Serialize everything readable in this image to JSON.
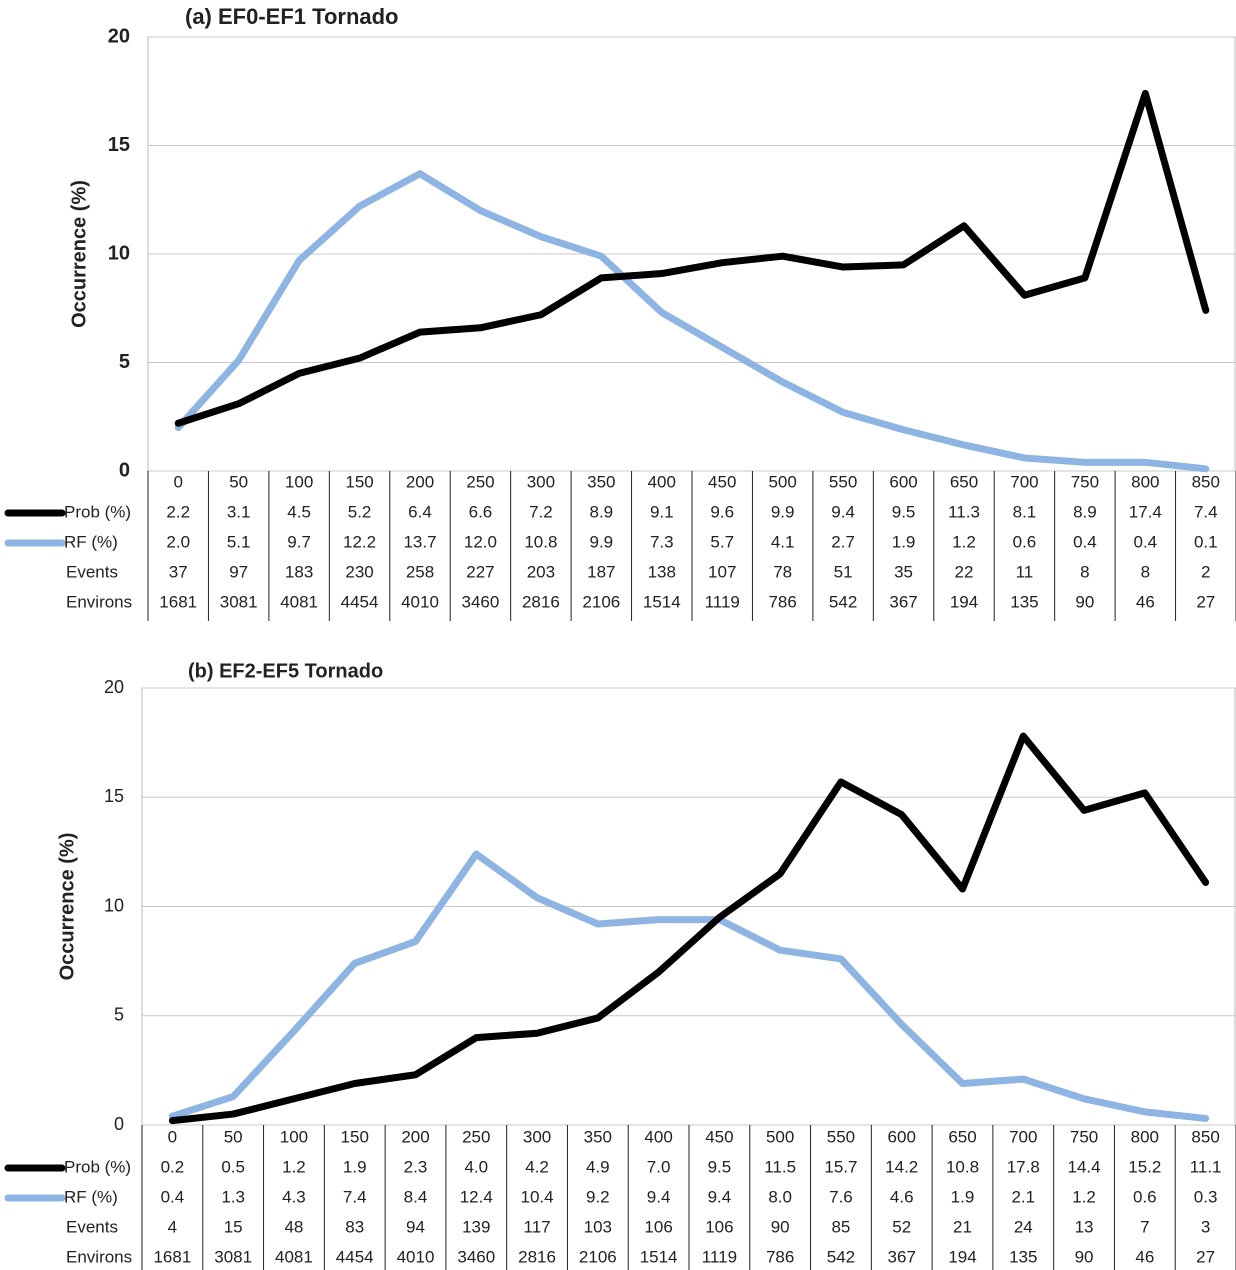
{
  "chart_data": [
    {
      "type": "line",
      "title": "(a) EF0-EF1 Tornado",
      "y_label": "Occurrence (%)",
      "categories": [
        0,
        50,
        100,
        150,
        200,
        250,
        300,
        350,
        400,
        450,
        500,
        550,
        600,
        650,
        700,
        750,
        800,
        850
      ],
      "ylim": [
        0,
        20
      ],
      "yticks": [
        0,
        5,
        10,
        15,
        20
      ],
      "grid": true,
      "series": [
        {
          "name": "Prob (%)",
          "color": "#000000",
          "values": [
            2.2,
            3.1,
            4.5,
            5.2,
            6.4,
            6.6,
            7.2,
            8.9,
            9.1,
            9.6,
            9.9,
            9.4,
            9.5,
            11.3,
            8.1,
            8.9,
            17.4,
            7.4
          ],
          "value_labels": [
            "2.2",
            "3.1",
            "4.5",
            "5.2",
            "6.4",
            "6.6",
            "7.2",
            "8.9",
            "9.1",
            "9.6",
            "9.9",
            "9.4",
            "9.5",
            "11.3",
            "8.1",
            "8.9",
            "17.4",
            "7.4"
          ]
        },
        {
          "name": "RF (%)",
          "color": "#8eb4e3",
          "values": [
            2.0,
            5.1,
            9.7,
            12.2,
            13.7,
            12.0,
            10.8,
            9.9,
            7.3,
            5.7,
            4.1,
            2.7,
            1.9,
            1.2,
            0.6,
            0.4,
            0.4,
            0.1
          ],
          "value_labels": [
            "2.0",
            "5.1",
            "9.7",
            "12.2",
            "13.7",
            "12.0",
            "10.8",
            "9.9",
            "7.3",
            "5.7",
            "4.1",
            "2.7",
            "1.9",
            "1.2",
            "0.6",
            "0.4",
            "0.4",
            "0.1"
          ]
        }
      ],
      "table_rows": [
        {
          "name": "Events",
          "values": [
            37,
            97,
            183,
            230,
            258,
            227,
            203,
            187,
            138,
            107,
            78,
            51,
            35,
            22,
            11,
            8,
            8,
            2
          ]
        },
        {
          "name": "Environs",
          "values": [
            1681,
            3081,
            4081,
            4454,
            4010,
            3460,
            2816,
            2106,
            1514,
            1119,
            786,
            542,
            367,
            194,
            135,
            90,
            46,
            27
          ]
        }
      ]
    },
    {
      "type": "line",
      "title": "(b) EF2-EF5 Tornado",
      "y_label": "Occurrence (%)",
      "categories": [
        0,
        50,
        100,
        150,
        200,
        250,
        300,
        350,
        400,
        450,
        500,
        550,
        600,
        650,
        700,
        750,
        800,
        850
      ],
      "ylim": [
        0,
        20
      ],
      "yticks": [
        0,
        5,
        10,
        15,
        20
      ],
      "grid": true,
      "series": [
        {
          "name": "Prob (%)",
          "color": "#000000",
          "values": [
            0.2,
            0.5,
            1.2,
            1.9,
            2.3,
            4.0,
            4.2,
            4.9,
            7.0,
            9.5,
            11.5,
            15.7,
            14.2,
            10.8,
            17.8,
            14.4,
            15.2,
            11.1
          ],
          "value_labels": [
            "0.2",
            "0.5",
            "1.2",
            "1.9",
            "2.3",
            "4.0",
            "4.2",
            "4.9",
            "7.0",
            "9.5",
            "11.5",
            "15.7",
            "14.2",
            "10.8",
            "17.8",
            "14.4",
            "15.2",
            "11.1"
          ]
        },
        {
          "name": "RF (%)",
          "color": "#8eb4e3",
          "values": [
            0.4,
            1.3,
            4.3,
            7.4,
            8.4,
            12.4,
            10.4,
            9.2,
            9.4,
            9.4,
            8.0,
            7.6,
            4.6,
            1.9,
            2.1,
            1.2,
            0.6,
            0.3
          ],
          "value_labels": [
            "0.4",
            "1.3",
            "4.3",
            "7.4",
            "8.4",
            "12.4",
            "10.4",
            "9.2",
            "9.4",
            "9.4",
            "8.0",
            "7.6",
            "4.6",
            "1.9",
            "2.1",
            "1.2",
            "0.6",
            "0.3"
          ]
        }
      ],
      "table_rows": [
        {
          "name": "Events",
          "values": [
            4,
            15,
            48,
            83,
            94,
            139,
            117,
            103,
            106,
            106,
            90,
            85,
            52,
            21,
            24,
            13,
            7,
            3
          ]
        },
        {
          "name": "Environs",
          "values": [
            1681,
            3081,
            4081,
            4454,
            4010,
            3460,
            2816,
            2106,
            1514,
            1119,
            786,
            542,
            367,
            194,
            135,
            90,
            46,
            27
          ]
        }
      ]
    }
  ]
}
